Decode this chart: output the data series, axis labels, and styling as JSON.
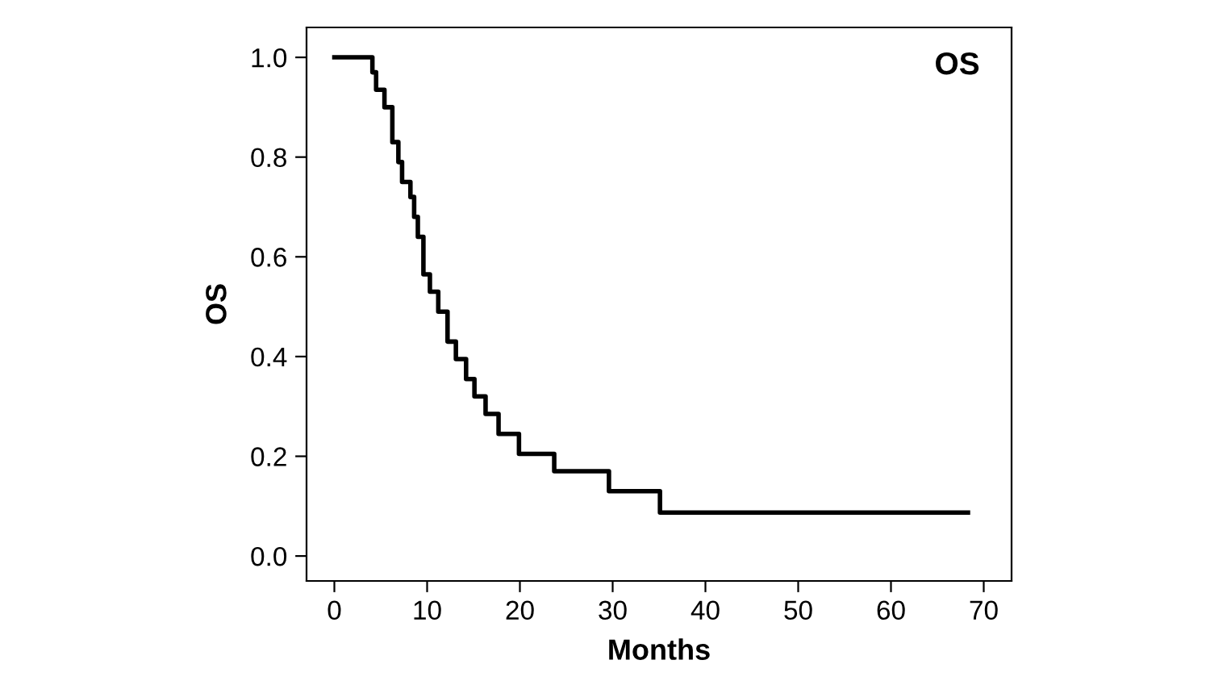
{
  "chart_data": {
    "type": "step",
    "title": "OS",
    "xlabel": "Months",
    "ylabel": "OS",
    "x": [
      0,
      4.1,
      4.5,
      5.4,
      6.25,
      6.9,
      7.3,
      8.2,
      8.6,
      9.0,
      9.6,
      10.3,
      11.2,
      12.2,
      13.1,
      14.2,
      15.1,
      16.3,
      17.7,
      19.9,
      23.7,
      29.6,
      35.1,
      68.3
    ],
    "values": [
      1.0,
      0.97,
      0.935,
      0.9,
      0.83,
      0.79,
      0.75,
      0.72,
      0.68,
      0.64,
      0.565,
      0.53,
      0.49,
      0.43,
      0.395,
      0.355,
      0.32,
      0.285,
      0.245,
      0.205,
      0.17,
      0.13,
      0.087,
      0.087
    ],
    "color": "#000000",
    "line_style": "solid",
    "grid": false,
    "xlim": [
      -3,
      73
    ],
    "xticks": [
      0,
      10,
      20,
      30,
      40,
      50,
      60,
      70
    ],
    "ylim": [
      -0.05,
      1.06
    ],
    "yticks": [
      {
        "value": 0,
        "label": "0.0"
      },
      0.2,
      0.4,
      0.6,
      0.8,
      {
        "value": 1,
        "label": "1.0"
      }
    ]
  }
}
